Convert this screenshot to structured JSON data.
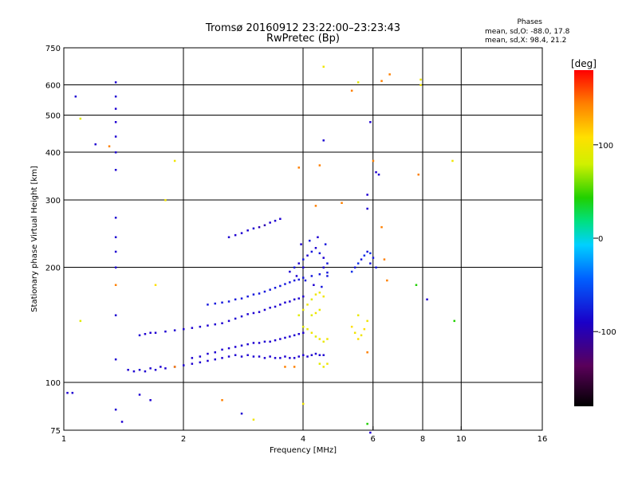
{
  "chart_data": {
    "type": "scatter",
    "title": "Tromsø 20160912 23:22:00–23:23:43",
    "subtitle": "RwPretec (Bp)",
    "xlabel": "Frequency [MHz]",
    "ylabel": "Stationary phase Virtual Height [km]",
    "xscale": "log",
    "yscale": "log",
    "xlim": [
      1,
      16
    ],
    "ylim": [
      75,
      750
    ],
    "x_ticks": [
      1,
      2,
      4,
      6,
      8,
      10,
      16
    ],
    "x_tick_labels": [
      "1",
      "2",
      "4",
      "6",
      "8",
      "10",
      "16"
    ],
    "y_ticks": [
      75,
      100,
      200,
      300,
      400,
      500,
      600,
      750
    ],
    "y_tick_labels": [
      "75",
      "100",
      "200",
      "300",
      "400",
      "500",
      "600",
      "750"
    ],
    "grid": true,
    "stats": {
      "heading": "Phases",
      "line_o": "mean, sd,O:  -88.0, 17.8",
      "line_x": "mean, sd,X:  98.4, 21.2"
    },
    "colorbar": {
      "label": "[deg]",
      "range": [
        -180,
        180
      ],
      "ticks": [
        -100,
        0,
        100
      ],
      "tick_labels": [
        "-100",
        "0",
        "100"
      ]
    },
    "series": [
      {
        "trace": "lower-F-trace",
        "points": [
          [
            1.45,
            108,
            -100
          ],
          [
            1.5,
            107,
            -100
          ],
          [
            1.55,
            108,
            -100
          ],
          [
            1.6,
            107,
            -100
          ],
          [
            1.65,
            109,
            -100
          ],
          [
            1.7,
            108,
            -100
          ],
          [
            1.75,
            110,
            -100
          ],
          [
            1.8,
            109,
            -100
          ],
          [
            1.9,
            110,
            -100
          ],
          [
            2.0,
            111,
            -100
          ],
          [
            2.1,
            112,
            -100
          ],
          [
            2.2,
            113,
            -100
          ],
          [
            2.3,
            114,
            -100
          ],
          [
            2.4,
            115,
            -100
          ],
          [
            2.5,
            116,
            -100
          ],
          [
            2.6,
            117,
            -100
          ],
          [
            2.7,
            118,
            -100
          ],
          [
            2.8,
            117,
            -100
          ],
          [
            2.9,
            118,
            -100
          ],
          [
            3.0,
            117,
            -100
          ],
          [
            3.1,
            117,
            -100
          ],
          [
            3.2,
            116,
            -100
          ],
          [
            3.3,
            117,
            -100
          ],
          [
            3.4,
            116,
            -100
          ],
          [
            3.5,
            116,
            -100
          ],
          [
            3.6,
            117,
            -100
          ],
          [
            3.7,
            116,
            -100
          ],
          [
            3.8,
            116,
            -100
          ],
          [
            3.9,
            117,
            -100
          ],
          [
            4.0,
            118,
            -100
          ],
          [
            4.1,
            117,
            -100
          ],
          [
            4.2,
            118,
            -100
          ],
          [
            4.3,
            119,
            -100
          ],
          [
            4.4,
            118,
            -100
          ],
          [
            4.5,
            118,
            -100
          ]
        ]
      },
      {
        "trace": "middle-F-trace",
        "points": [
          [
            2.1,
            116,
            -100
          ],
          [
            2.2,
            117,
            -100
          ],
          [
            2.3,
            119,
            -100
          ],
          [
            2.4,
            120,
            -100
          ],
          [
            2.5,
            122,
            -100
          ],
          [
            2.6,
            123,
            -100
          ],
          [
            2.7,
            124,
            -100
          ],
          [
            2.8,
            125,
            -100
          ],
          [
            2.9,
            126,
            -100
          ],
          [
            3.0,
            127,
            -100
          ],
          [
            3.1,
            127,
            -100
          ],
          [
            3.2,
            128,
            -100
          ],
          [
            3.3,
            128,
            -100
          ],
          [
            3.4,
            129,
            -100
          ],
          [
            3.5,
            130,
            -100
          ],
          [
            3.6,
            131,
            -100
          ],
          [
            3.7,
            132,
            -100
          ],
          [
            3.8,
            133,
            -100
          ],
          [
            3.9,
            134,
            -100
          ],
          [
            4.0,
            135,
            -100
          ]
        ]
      },
      {
        "trace": "upper-F-trace",
        "points": [
          [
            1.55,
            133,
            -100
          ],
          [
            1.6,
            134,
            -100
          ],
          [
            1.65,
            135,
            -100
          ],
          [
            1.7,
            135,
            -100
          ],
          [
            1.8,
            136,
            -100
          ],
          [
            1.9,
            137,
            -100
          ],
          [
            2.0,
            138,
            -100
          ],
          [
            2.1,
            139,
            -100
          ],
          [
            2.2,
            140,
            -100
          ],
          [
            2.3,
            141,
            -100
          ],
          [
            2.4,
            142,
            -100
          ],
          [
            2.5,
            143,
            -100
          ],
          [
            2.6,
            145,
            -100
          ],
          [
            2.7,
            147,
            -100
          ],
          [
            2.8,
            149,
            -100
          ],
          [
            2.9,
            151,
            -100
          ],
          [
            3.0,
            152,
            -100
          ],
          [
            3.1,
            153,
            -100
          ],
          [
            3.2,
            155,
            -100
          ],
          [
            3.3,
            157,
            -100
          ],
          [
            3.4,
            158,
            -100
          ],
          [
            3.5,
            160,
            -100
          ],
          [
            3.6,
            162,
            -100
          ],
          [
            3.7,
            163,
            -100
          ],
          [
            3.8,
            165,
            -100
          ],
          [
            3.9,
            166,
            -100
          ],
          [
            4.0,
            168,
            -100
          ]
        ]
      },
      {
        "trace": "upper-F-faint-trace",
        "points": [
          [
            2.3,
            160,
            -90
          ],
          [
            2.4,
            161,
            -90
          ],
          [
            2.5,
            162,
            -90
          ],
          [
            2.6,
            163,
            -90
          ],
          [
            2.7,
            165,
            -90
          ],
          [
            2.8,
            166,
            -90
          ],
          [
            2.9,
            168,
            -90
          ],
          [
            3.0,
            170,
            -90
          ],
          [
            3.1,
            171,
            -90
          ],
          [
            3.2,
            173,
            -90
          ],
          [
            3.3,
            175,
            -90
          ],
          [
            3.4,
            177,
            -90
          ],
          [
            3.5,
            179,
            -90
          ],
          [
            3.6,
            181,
            -90
          ],
          [
            3.7,
            183,
            -90
          ],
          [
            3.8,
            185,
            -90
          ],
          [
            3.9,
            186,
            -90
          ],
          [
            4.0,
            188,
            -90
          ],
          [
            4.2,
            190,
            -90
          ],
          [
            4.4,
            192,
            -90
          ],
          [
            4.6,
            194,
            -90
          ]
        ]
      },
      {
        "trace": "spread-F-cluster",
        "points": [
          [
            3.7,
            195,
            -100
          ],
          [
            3.8,
            200,
            -90
          ],
          [
            3.9,
            205,
            -100
          ],
          [
            4.0,
            210,
            -90
          ],
          [
            4.1,
            215,
            -100
          ],
          [
            4.2,
            220,
            -90
          ],
          [
            4.3,
            225,
            -100
          ],
          [
            4.4,
            218,
            -90
          ],
          [
            4.5,
            212,
            -100
          ],
          [
            4.6,
            205,
            -90
          ],
          [
            3.85,
            190,
            -100
          ],
          [
            4.05,
            185,
            -90
          ],
          [
            4.25,
            180,
            -100
          ],
          [
            4.45,
            178,
            -90
          ],
          [
            3.95,
            230,
            -100
          ],
          [
            4.15,
            235,
            -90
          ],
          [
            4.35,
            240,
            -100
          ],
          [
            4.55,
            230,
            -90
          ],
          [
            4.5,
            200,
            -100
          ],
          [
            4.6,
            190,
            -90
          ]
        ]
      },
      {
        "trace": "o-x-cluster",
        "points": [
          [
            3.9,
            150,
            90
          ],
          [
            4.0,
            155,
            95
          ],
          [
            4.1,
            160,
            100
          ],
          [
            4.2,
            165,
            90
          ],
          [
            4.3,
            170,
            100
          ],
          [
            4.4,
            172,
            95
          ],
          [
            4.5,
            168,
            100
          ],
          [
            4.0,
            140,
            90
          ],
          [
            4.1,
            138,
            95
          ],
          [
            4.2,
            135,
            100
          ],
          [
            4.3,
            132,
            90
          ],
          [
            4.4,
            130,
            100
          ],
          [
            4.5,
            128,
            95
          ],
          [
            4.6,
            130,
            100
          ],
          [
            4.4,
            112,
            90
          ],
          [
            4.5,
            110,
            95
          ],
          [
            4.6,
            112,
            100
          ],
          [
            4.2,
            150,
            90
          ],
          [
            4.3,
            152,
            100
          ],
          [
            4.4,
            155,
            95
          ]
        ]
      },
      {
        "trace": "high-frequency-cluster",
        "points": [
          [
            5.3,
            140,
            110
          ],
          [
            5.4,
            135,
            100
          ],
          [
            5.5,
            130,
            110
          ],
          [
            5.6,
            133,
            100
          ],
          [
            5.7,
            138,
            110
          ],
          [
            5.8,
            145,
            100
          ],
          [
            5.5,
            150,
            95
          ],
          [
            5.4,
            200,
            -90
          ],
          [
            5.5,
            205,
            -80
          ],
          [
            5.6,
            210,
            -90
          ],
          [
            5.7,
            215,
            -80
          ],
          [
            5.8,
            220,
            -90
          ],
          [
            5.9,
            218,
            -80
          ],
          [
            6.0,
            212,
            -90
          ],
          [
            5.3,
            195,
            -80
          ],
          [
            5.9,
            205,
            -90
          ]
        ]
      },
      {
        "trace": "upper-band-cluster",
        "points": [
          [
            2.6,
            240,
            -100
          ],
          [
            2.7,
            243,
            -100
          ],
          [
            2.8,
            246,
            -100
          ],
          [
            2.9,
            250,
            -100
          ],
          [
            3.0,
            253,
            -100
          ],
          [
            3.1,
            255,
            -110
          ],
          [
            3.2,
            258,
            -110
          ],
          [
            3.3,
            262,
            -100
          ],
          [
            3.4,
            265,
            -100
          ],
          [
            3.5,
            268,
            -100
          ]
        ]
      },
      {
        "trace": "sporadic",
        "points": [
          [
            1.35,
            610,
            -100
          ],
          [
            1.35,
            560,
            -100
          ],
          [
            1.35,
            520,
            -100
          ],
          [
            1.35,
            480,
            -100
          ],
          [
            1.35,
            440,
            -100
          ],
          [
            1.35,
            400,
            -100
          ],
          [
            1.35,
            360,
            -100
          ],
          [
            1.35,
            270,
            -100
          ],
          [
            1.35,
            240,
            -100
          ],
          [
            1.35,
            220,
            -100
          ],
          [
            1.35,
            200,
            -100
          ],
          [
            1.35,
            180,
            140
          ],
          [
            1.35,
            150,
            -100
          ],
          [
            1.35,
            115,
            -100
          ],
          [
            1.35,
            85,
            -100
          ],
          [
            1.07,
            560,
            -100
          ],
          [
            1.1,
            490,
            90
          ],
          [
            1.2,
            420,
            -100
          ],
          [
            1.3,
            415,
            140
          ],
          [
            1.1,
            145,
            90
          ],
          [
            1.02,
            94,
            -100
          ],
          [
            1.05,
            94,
            -100
          ],
          [
            1.55,
            93,
            -100
          ],
          [
            1.65,
            90,
            -100
          ],
          [
            1.4,
            79,
            -100
          ],
          [
            4.0,
            200,
            -100
          ],
          [
            4.5,
            670,
            100
          ],
          [
            6.3,
            615,
            140
          ],
          [
            6.6,
            640,
            140
          ],
          [
            7.9,
            620,
            100
          ],
          [
            7.9,
            600,
            100
          ],
          [
            9.5,
            380,
            100
          ],
          [
            7.8,
            350,
            140
          ],
          [
            5.9,
            480,
            -100
          ],
          [
            5.8,
            310,
            -100
          ],
          [
            5.8,
            285,
            -100
          ],
          [
            6.1,
            355,
            -100
          ],
          [
            6.2,
            350,
            -100
          ],
          [
            4.5,
            430,
            -100
          ],
          [
            3.9,
            365,
            140
          ],
          [
            4.4,
            370,
            140
          ],
          [
            4.3,
            290,
            140
          ],
          [
            5.0,
            295,
            140
          ],
          [
            6.0,
            380,
            140
          ],
          [
            6.3,
            255,
            140
          ],
          [
            6.4,
            210,
            140
          ],
          [
            6.5,
            185,
            140
          ],
          [
            7.7,
            180,
            40
          ],
          [
            8.2,
            165,
            -100
          ],
          [
            9.6,
            145,
            40
          ],
          [
            6.1,
            200,
            -90
          ],
          [
            5.3,
            580,
            140
          ],
          [
            5.5,
            610,
            90
          ],
          [
            1.9,
            380,
            100
          ],
          [
            1.8,
            300,
            100
          ],
          [
            1.7,
            180,
            110
          ],
          [
            1.9,
            110,
            140
          ],
          [
            2.5,
            90,
            140
          ],
          [
            3.0,
            80,
            100
          ],
          [
            4.0,
            88,
            100
          ],
          [
            2.8,
            83,
            -100
          ],
          [
            5.8,
            78,
            40
          ],
          [
            5.9,
            74,
            -100
          ],
          [
            5.8,
            120,
            140
          ],
          [
            3.6,
            110,
            140
          ],
          [
            3.8,
            110,
            140
          ]
        ]
      }
    ]
  }
}
